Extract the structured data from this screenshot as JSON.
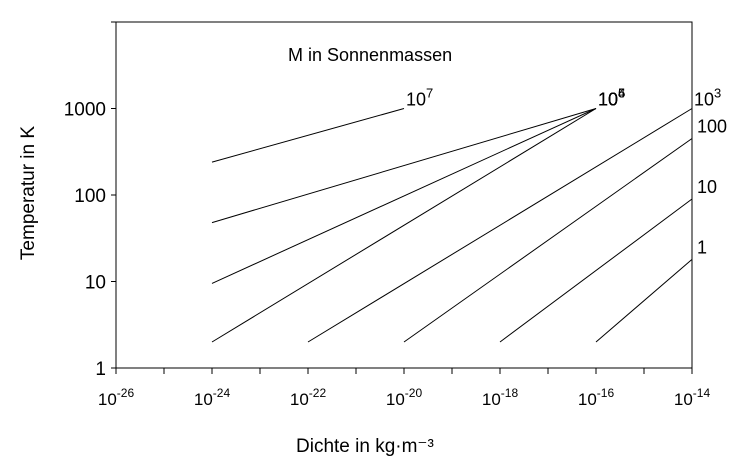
{
  "chart_data": {
    "type": "line",
    "title": "M in Sonnenmassen",
    "xlabel": "Dichte in kg·m⁻³",
    "ylabel": "Temperatur in K",
    "x_scale": "log",
    "y_scale": "log",
    "xlim": [
      1e-26,
      1e-14
    ],
    "ylim": [
      1,
      10000
    ],
    "grid": false,
    "x_ticks": [
      {
        "value": 1e-26,
        "base": "10",
        "exp": "-26"
      },
      {
        "value": 1e-24,
        "base": "10",
        "exp": "-24"
      },
      {
        "value": 1e-22,
        "base": "10",
        "exp": "-22"
      },
      {
        "value": 1e-20,
        "base": "10",
        "exp": "-20"
      },
      {
        "value": 1e-18,
        "base": "10",
        "exp": "-18"
      },
      {
        "value": 1e-16,
        "base": "10",
        "exp": "-16"
      },
      {
        "value": 1e-14,
        "base": "10",
        "exp": "-14"
      }
    ],
    "y_ticks": [
      {
        "value": 1,
        "label": "1"
      },
      {
        "value": 10,
        "label": "10"
      },
      {
        "value": 100,
        "label": "100"
      },
      {
        "value": 1000,
        "label": "1000"
      }
    ],
    "series": [
      {
        "name_base": "10",
        "name_exp": "7",
        "label_side": "top",
        "x": [
          1e-24,
          1e-20
        ],
        "y": [
          240,
          1000
        ]
      },
      {
        "name_base": "10",
        "name_exp": "6",
        "label_side": "top",
        "x": [
          1e-24,
          1e-16
        ],
        "y": [
          48,
          1000
        ]
      },
      {
        "name_base": "10",
        "name_exp": "5",
        "label_side": "top",
        "x": [
          1e-24,
          1e-16
        ],
        "y": [
          9.5,
          1000
        ]
      },
      {
        "name_base": "10",
        "name_exp": "4",
        "label_side": "top",
        "x": [
          1e-24,
          1e-16
        ],
        "y": [
          2,
          1000
        ]
      },
      {
        "name_base": "10",
        "name_exp": "3",
        "label_side": "top",
        "x": [
          1e-22,
          1e-14
        ],
        "y": [
          2,
          1000
        ]
      },
      {
        "name_base": "100",
        "name_exp": "",
        "label_side": "right",
        "x": [
          1e-20,
          1e-14
        ],
        "y": [
          2,
          450
        ]
      },
      {
        "name_base": "10",
        "name_exp": "",
        "label_side": "right",
        "x": [
          1e-18,
          1e-14
        ],
        "y": [
          2,
          90
        ]
      },
      {
        "name_base": "1",
        "name_exp": "",
        "label_side": "right",
        "x": [
          1e-16,
          1e-14
        ],
        "y": [
          2,
          18
        ]
      }
    ]
  }
}
